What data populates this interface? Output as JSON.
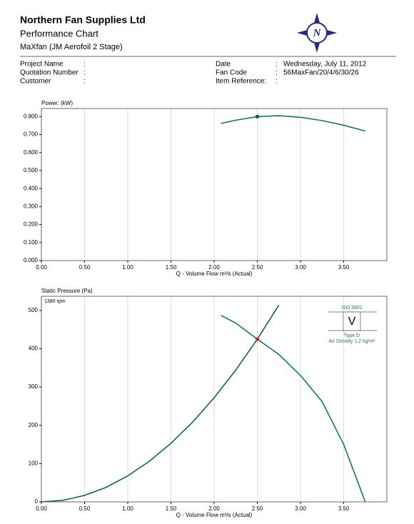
{
  "header": {
    "company": "Northern Fan Supplies Ltd",
    "title": "Performance Chart",
    "subtitle": "MaXfan (JM Aerofoil 2 Stage)"
  },
  "info": {
    "left": [
      {
        "label": "Project Name",
        "sep": ":"
      },
      {
        "label": "Quotation Number",
        "sep": ":"
      },
      {
        "label": "Customer",
        "sep": ":"
      }
    ],
    "right": [
      {
        "label": "Date",
        "sep": ":",
        "value": "Wednesday, July 11, 2012"
      },
      {
        "label": "Fan Code",
        "sep": ":",
        "value": "56MaxFan/20/4/6/30/26"
      },
      {
        "label": "Item Reference:",
        "sep": ":"
      }
    ]
  },
  "chart_data": [
    {
      "type": "line",
      "ylabel": "Power: (kW)",
      "xlabel": "Q - Volume Flow m³/s (Actual)",
      "grid": "x",
      "xlim": [
        0,
        4
      ],
      "ylim": [
        0,
        0.845
      ],
      "xticks": [
        {
          "value": 0,
          "label": "0.00"
        },
        {
          "value": 0.5,
          "label": "0.50"
        },
        {
          "value": 1,
          "label": "1.00"
        },
        {
          "value": 1.5,
          "label": "1.50"
        },
        {
          "value": 2,
          "label": "2.00"
        },
        {
          "value": 2.5,
          "label": "2.50"
        },
        {
          "value": 3,
          "label": "3.00"
        },
        {
          "value": 3.5,
          "label": "3.50"
        }
      ],
      "yticks": [
        {
          "value": 0,
          "label": "0.000"
        },
        {
          "value": 0.1,
          "label": "0.100"
        },
        {
          "value": 0.2,
          "label": "0.200"
        },
        {
          "value": 0.3,
          "label": "0.300"
        },
        {
          "value": 0.4,
          "label": "0.400"
        },
        {
          "value": 0.5,
          "label": "0.500"
        },
        {
          "value": 0.6,
          "label": "0.600"
        },
        {
          "value": 0.7,
          "label": "0.700"
        },
        {
          "value": 0.8,
          "label": "0.800"
        }
      ],
      "series": [
        {
          "color": "#0b7a6e",
          "x": [
            2.08,
            2.25,
            2.5,
            2.75,
            3.0,
            3.25,
            3.5,
            3.75
          ],
          "values": [
            0.762,
            0.78,
            0.8,
            0.805,
            0.796,
            0.778,
            0.752,
            0.72
          ]
        }
      ],
      "markers": [
        {
          "x": 2.5,
          "y": 0.8,
          "color": "#0b5a2e"
        }
      ]
    },
    {
      "type": "line",
      "ylabel": "Static Pressure (Pa)",
      "xlabel": "Q - Volume Flow m³/s (Actual)",
      "grid": "x",
      "annotation": "1380 rpm",
      "standard": {
        "title": "ISO 5801",
        "symbol": "V",
        "type": "Type D",
        "density": "Air Density  1.2 kg/m³"
      },
      "xlim": [
        0,
        4
      ],
      "ylim": [
        0,
        537
      ],
      "xticks": [
        {
          "value": 0,
          "label": "0.00"
        },
        {
          "value": 0.5,
          "label": "0.50"
        },
        {
          "value": 1,
          "label": "1.00"
        },
        {
          "value": 1.5,
          "label": "1.50"
        },
        {
          "value": 2,
          "label": "2.00"
        },
        {
          "value": 2.5,
          "label": "2.50"
        },
        {
          "value": 3,
          "label": "3.00"
        },
        {
          "value": 3.5,
          "label": "3.50"
        }
      ],
      "yticks": [
        0,
        100,
        200,
        300,
        400,
        500
      ],
      "series": [
        {
          "color": "#0b7a6e",
          "x": [
            2.08,
            2.25,
            2.5,
            2.75,
            3.0,
            3.25,
            3.5,
            3.75
          ],
          "values": [
            487,
            467,
            425,
            385,
            330,
            262,
            150,
            0
          ]
        },
        {
          "color": "#0b6a3e",
          "x": [
            0,
            0.25,
            0.5,
            0.75,
            1.0,
            1.25,
            1.5,
            1.75,
            2.0,
            2.25,
            2.5,
            2.75
          ],
          "values": [
            0,
            4,
            17,
            38,
            68,
            106,
            153,
            208,
            272,
            344,
            425,
            514
          ]
        }
      ],
      "markers": [
        {
          "x": 2.5,
          "y": 425,
          "color": "#e0201a"
        }
      ]
    }
  ]
}
